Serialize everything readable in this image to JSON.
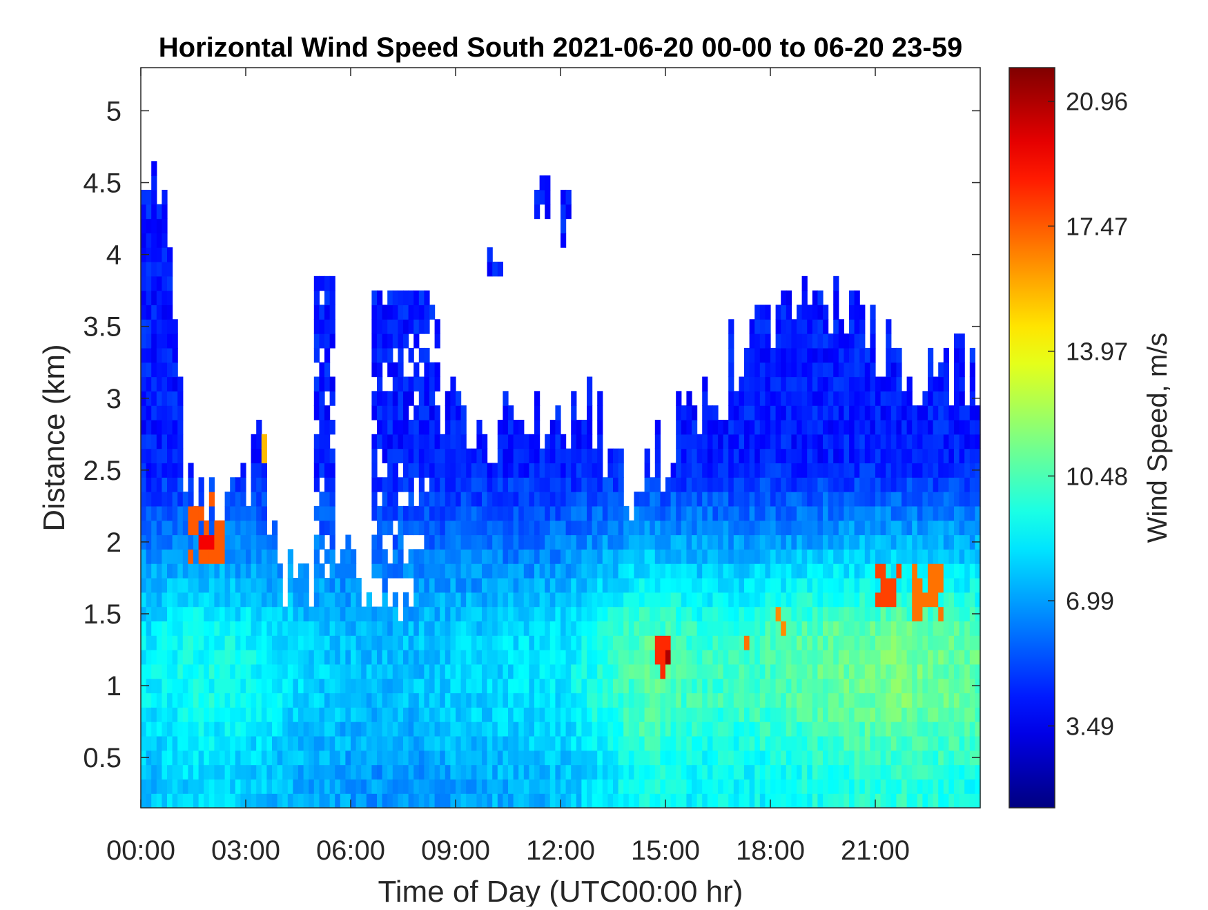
{
  "chart_data": {
    "type": "heatmap",
    "title": "Horizontal Wind Speed South 2021-06-20 00-00 to 06-20 23-59",
    "xlabel": "Time of Day (UTC00:00 hr)",
    "ylabel": "Distance (km)",
    "colorbar_label": "Wind Speed, m/s",
    "xlim_hours": [
      0,
      24
    ],
    "ylim_km": [
      0.15,
      5.3
    ],
    "x_ticks": [
      {
        "value": 0,
        "label": "00:00"
      },
      {
        "value": 3,
        "label": "03:00"
      },
      {
        "value": 6,
        "label": "06:00"
      },
      {
        "value": 9,
        "label": "09:00"
      },
      {
        "value": 12,
        "label": "12:00"
      },
      {
        "value": 15,
        "label": "15:00"
      },
      {
        "value": 18,
        "label": "18:00"
      },
      {
        "value": 21,
        "label": "21:00"
      }
    ],
    "y_ticks": [
      {
        "value": 0.5,
        "label": "0.5"
      },
      {
        "value": 1,
        "label": "1"
      },
      {
        "value": 1.5,
        "label": "1.5"
      },
      {
        "value": 2,
        "label": "2"
      },
      {
        "value": 2.5,
        "label": "2.5"
      },
      {
        "value": 3,
        "label": "3"
      },
      {
        "value": 3.5,
        "label": "3.5"
      },
      {
        "value": 4,
        "label": "4"
      },
      {
        "value": 4.5,
        "label": "4.5"
      },
      {
        "value": 5,
        "label": "5"
      }
    ],
    "colorbar": {
      "range": [
        1.2,
        21.9
      ],
      "colormap": "jet",
      "ticks": [
        {
          "value": 3.49,
          "label": "3.49"
        },
        {
          "value": 6.99,
          "label": "6.99"
        },
        {
          "value": 10.48,
          "label": "10.48"
        },
        {
          "value": 13.97,
          "label": "13.97"
        },
        {
          "value": 17.47,
          "label": "17.47"
        },
        {
          "value": 20.96,
          "label": "20.96"
        }
      ]
    },
    "data_top_km": [
      [
        0.0,
        4.6
      ],
      [
        0.5,
        4.6
      ],
      [
        0.75,
        4.2
      ],
      [
        1.0,
        3.3
      ],
      [
        1.25,
        2.5
      ],
      [
        1.5,
        2.3
      ],
      [
        2.0,
        2.4
      ],
      [
        2.5,
        2.4
      ],
      [
        3.0,
        2.3
      ],
      [
        3.5,
        2.8
      ],
      [
        3.75,
        2.1
      ],
      [
        4.0,
        1.8
      ],
      [
        4.5,
        1.6
      ],
      [
        5.0,
        1.5
      ],
      [
        5.5,
        1.7
      ],
      [
        6.0,
        1.8
      ],
      [
        6.5,
        1.8
      ],
      [
        7.0,
        1.7
      ],
      [
        7.5,
        1.7
      ],
      [
        8.0,
        1.8
      ],
      [
        8.5,
        3.0
      ],
      [
        9.0,
        3.0
      ],
      [
        10.0,
        2.8
      ],
      [
        11.0,
        2.8
      ],
      [
        12.0,
        2.8
      ],
      [
        12.5,
        2.9
      ],
      [
        13.0,
        2.8
      ],
      [
        13.5,
        2.6
      ],
      [
        14.0,
        2.3
      ],
      [
        14.5,
        2.6
      ],
      [
        15.0,
        2.6
      ],
      [
        15.3,
        2.8
      ],
      [
        16.0,
        2.8
      ],
      [
        17.0,
        3.3
      ],
      [
        18.0,
        3.5
      ],
      [
        19.0,
        3.7
      ],
      [
        20.0,
        3.7
      ],
      [
        21.0,
        3.3
      ],
      [
        22.0,
        3.2
      ],
      [
        23.0,
        3.2
      ],
      [
        24.0,
        3.2
      ]
    ],
    "data_bands": [
      {
        "x0": 4.9,
        "x1": 5.6,
        "y0": 1.5,
        "y1": 3.9
      },
      {
        "x0": 6.6,
        "x1": 8.6,
        "y0": 1.8,
        "y1": 3.8
      }
    ],
    "data_patches": [
      {
        "x0": 9.9,
        "x1": 10.35,
        "y0": 3.85,
        "y1": 4.1
      },
      {
        "x0": 11.2,
        "x1": 11.7,
        "y0": 4.25,
        "y1": 4.55
      },
      {
        "x0": 12.0,
        "x1": 12.25,
        "y0": 4.1,
        "y1": 4.5
      }
    ],
    "speed_profile": [
      {
        "x": 0,
        "v": 8.5
      },
      {
        "x": 1.5,
        "v": 9.3
      },
      {
        "x": 3,
        "v": 9.0
      },
      {
        "x": 5,
        "v": 8.0
      },
      {
        "x": 7,
        "v": 7.5
      },
      {
        "x": 9,
        "v": 8.0
      },
      {
        "x": 12,
        "v": 8.5
      },
      {
        "x": 14.5,
        "v": 10.8
      },
      {
        "x": 16,
        "v": 10.0
      },
      {
        "x": 18,
        "v": 10.3
      },
      {
        "x": 20,
        "v": 11.0
      },
      {
        "x": 22,
        "v": 11.3
      },
      {
        "x": 24,
        "v": 10.8
      }
    ],
    "upper_speed": 4.3,
    "hotspots": [
      {
        "x0": 1.4,
        "x1": 2.4,
        "y0": 1.9,
        "y1": 2.4,
        "v": 17.5
      },
      {
        "x0": 1.7,
        "x1": 2.1,
        "y0": 2.0,
        "y1": 2.1,
        "v": 19.5
      },
      {
        "x0": 3.3,
        "x1": 3.65,
        "y0": 2.6,
        "y1": 2.8,
        "v": 15.5
      },
      {
        "x0": 14.7,
        "x1": 15.1,
        "y0": 1.0,
        "y1": 1.35,
        "v": 18.5
      },
      {
        "x0": 14.95,
        "x1": 15.1,
        "y0": 1.05,
        "y1": 1.2,
        "v": 21.0
      },
      {
        "x0": 21.0,
        "x1": 21.8,
        "y0": 1.55,
        "y1": 1.85,
        "v": 18.0
      },
      {
        "x0": 22.0,
        "x1": 23.0,
        "y0": 1.5,
        "y1": 1.85,
        "v": 17.0
      },
      {
        "x0": 18.2,
        "x1": 18.5,
        "y0": 1.4,
        "y1": 1.6,
        "v": 16.5
      },
      {
        "x0": 17.2,
        "x1": 17.4,
        "y0": 1.2,
        "y1": 1.35,
        "v": 17.0
      }
    ]
  }
}
